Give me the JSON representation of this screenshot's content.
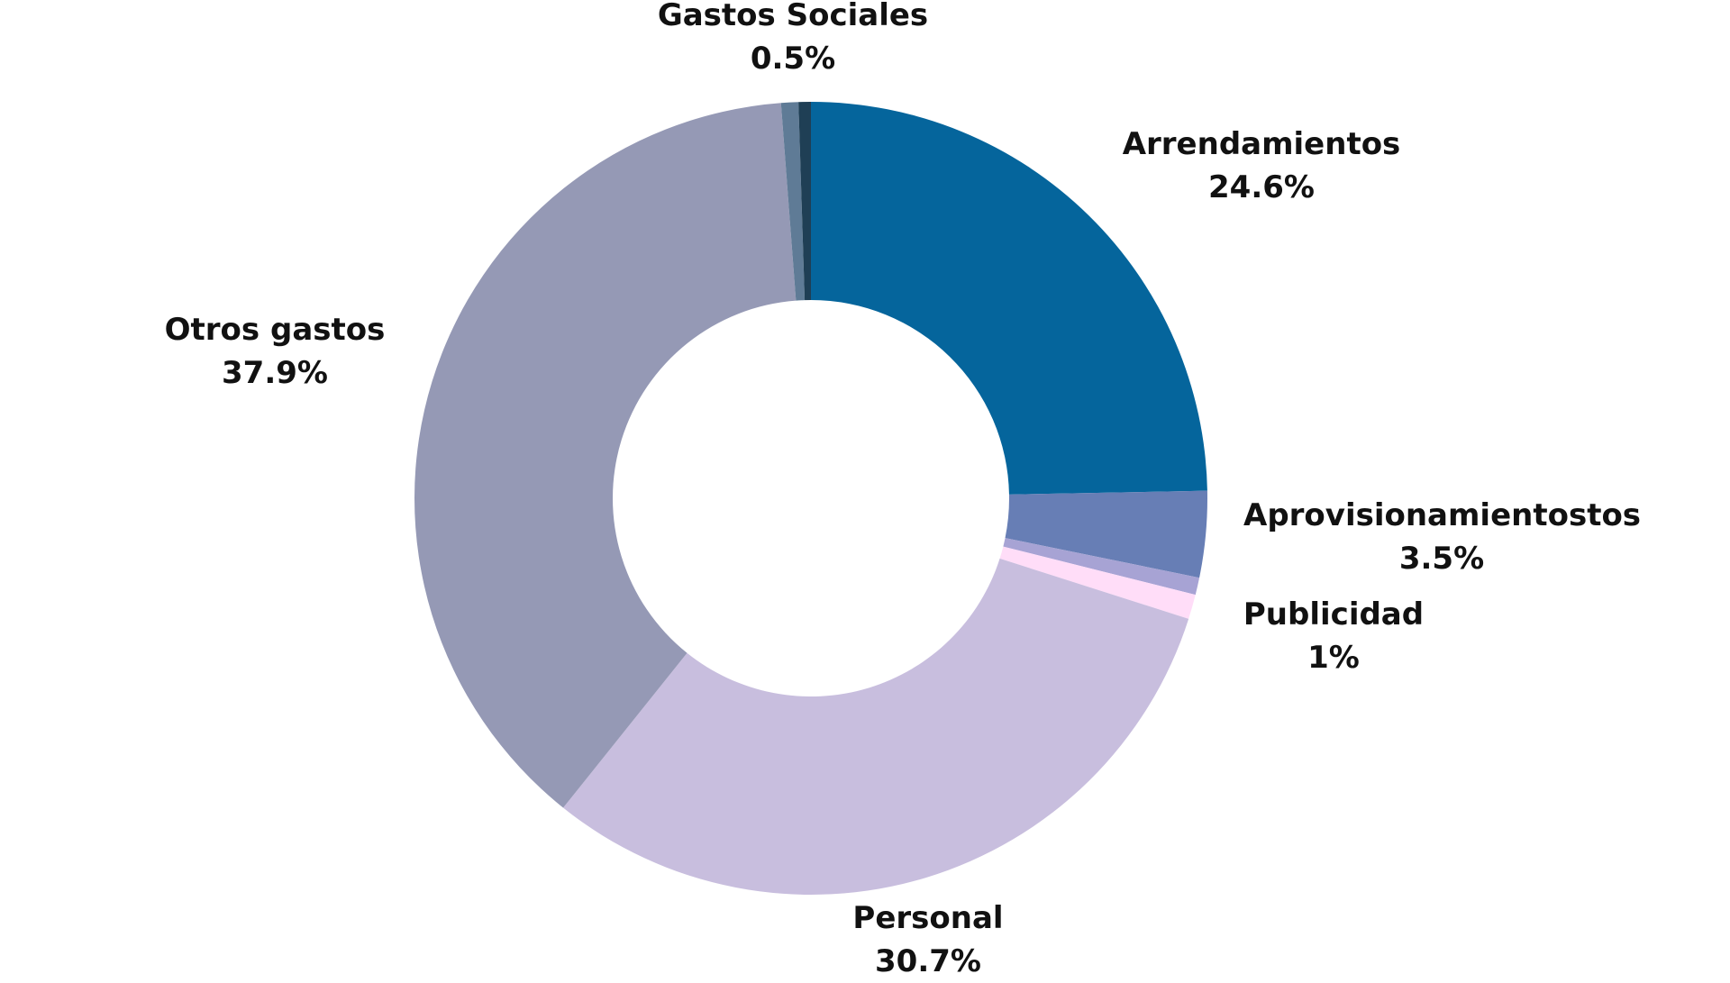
{
  "chart_data": {
    "type": "pie",
    "variant": "donut",
    "title": "",
    "categories": [
      "Arrendamientos",
      "Aprovisionamientostos",
      "",
      "Publicidad",
      "Personal",
      "Otros gastos",
      "",
      "Gastos Sociales"
    ],
    "values": [
      24.6,
      3.5,
      0.7,
      1,
      30.7,
      37.9,
      0.7,
      0.5
    ],
    "colors": [
      "#05659C",
      "#677EB5",
      "#A7A3D4",
      "#FFDDF8",
      "#C8BEDE",
      "#9599B5",
      "#5F7B96",
      "#1F3F55"
    ],
    "labels": [
      {
        "name": "Arrendamientos",
        "value_text": "24.6%"
      },
      {
        "name": "Aprovisionamientostos",
        "value_text": "3.5%"
      },
      {
        "name": "Publicidad",
        "value_text": "1%"
      },
      {
        "name": "Personal",
        "value_text": "30.7%"
      },
      {
        "name": "Otros gastos",
        "value_text": "37.9%"
      },
      {
        "name": "Gastos Sociales",
        "value_text": "0.5%"
      }
    ],
    "legend": "none"
  }
}
